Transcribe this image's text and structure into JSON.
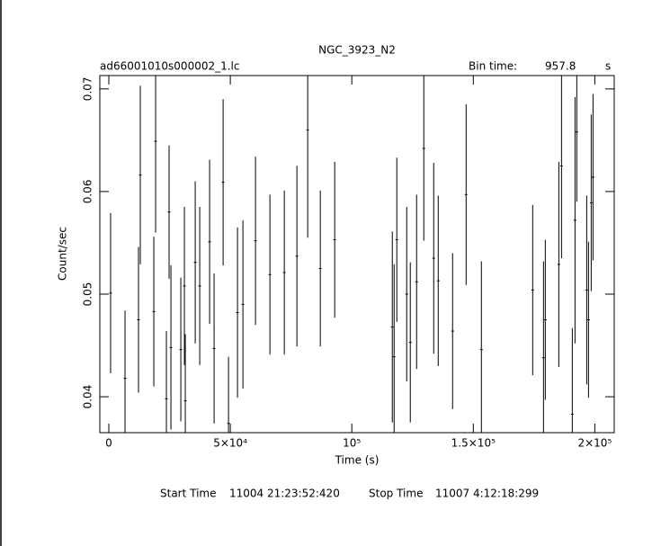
{
  "chart_data": {
    "type": "errorbar",
    "title": "NGC_3923_N2",
    "subtitle": "ad66001010s000002_1.lc",
    "bin_time_label": "Bin time:",
    "bin_time": 957.8,
    "bin_time_unit": "s",
    "xlabel": "Time (s)",
    "ylabel": "Count/sec",
    "start_label": "Start Time",
    "start": "11004 21:23:52:420",
    "stop_label": "Stop Time",
    "stop": "11007  4:12:18:299",
    "xlim": [
      -3700,
      208000
    ],
    "ylim": [
      0.0365,
      0.0713
    ],
    "xticks": [
      0,
      {
        "value": 50000,
        "label": "5×10⁴"
      },
      {
        "value": 100000,
        "label": "10⁵"
      },
      {
        "value": 150000,
        "label": "1.5×10⁵"
      },
      {
        "value": 200000,
        "label": "2×10⁵"
      }
    ],
    "yticks": [
      0.04,
      0.05,
      0.06,
      0.07
    ],
    "color": "#000000",
    "x": [
      740,
      6670,
      12220,
      12960,
      18520,
      19260,
      23700,
      24810,
      25560,
      29630,
      31110,
      31480,
      35560,
      37410,
      41480,
      43330,
      47040,
      49260,
      52960,
      55190,
      60370,
      66300,
      72220,
      77410,
      81850,
      87040,
      92960,
      116670,
      117410,
      118520,
      122590,
      124070,
      126670,
      129630,
      133700,
      135560,
      141480,
      147040,
      153330,
      174440,
      178890,
      179630,
      185190,
      186300,
      190740,
      191850,
      192590,
      196670,
      197410,
      198520,
      199260
    ],
    "values": [
      0.0501,
      0.0418,
      0.0475,
      0.0616,
      0.0483,
      0.0649,
      0.0398,
      0.058,
      0.0448,
      0.0446,
      0.0508,
      0.0396,
      0.0531,
      0.0508,
      0.0551,
      0.0447,
      0.0609,
      0.0374,
      0.0482,
      0.049,
      0.0552,
      0.0519,
      0.0521,
      0.0537,
      0.066,
      0.0525,
      0.0553,
      0.0468,
      0.0439,
      0.0553,
      0.05,
      0.0453,
      0.0512,
      0.0642,
      0.0535,
      0.0513,
      0.0464,
      0.0597,
      0.0446,
      0.0504,
      0.0438,
      0.0475,
      0.0529,
      0.0625,
      0.0383,
      0.0572,
      0.0658,
      0.0504,
      0.0475,
      0.0589,
      0.0614
    ],
    "errors": [
      0.0078,
      0.0066,
      0.0071,
      0.0087,
      0.0073,
      0.0089,
      0.0066,
      0.0065,
      0.008,
      0.007,
      0.0077,
      0.0065,
      0.0079,
      0.0077,
      0.008,
      0.0073,
      0.0081,
      0.0065,
      0.0083,
      0.0082,
      0.0082,
      0.0078,
      0.008,
      0.0088,
      0.0105,
      0.0076,
      0.0076,
      0.0093,
      0.009,
      0.008,
      0.0085,
      0.0078,
      0.0085,
      0.009,
      0.0093,
      0.0083,
      0.0076,
      0.0088,
      0.0086,
      0.0083,
      0.0094,
      0.0078,
      0.01,
      0.009,
      0.0084,
      0.012,
      0.0068,
      0.0092,
      0.0076,
      0.0086,
      0.0081
    ]
  }
}
